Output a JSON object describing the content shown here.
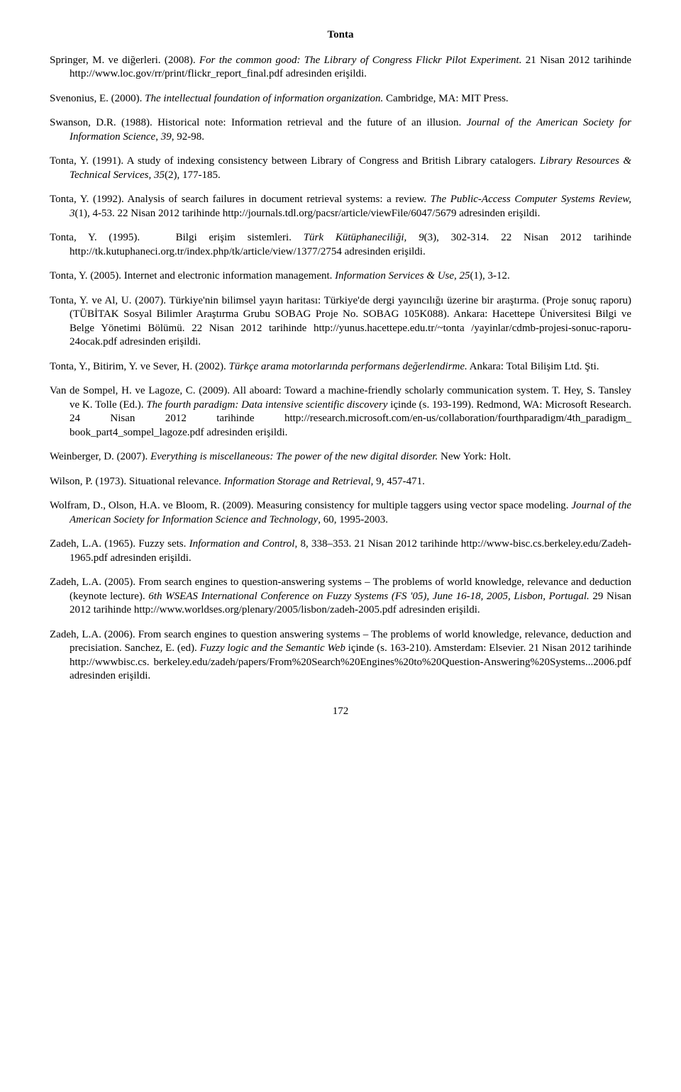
{
  "header": "Tonta",
  "refs": [
    {
      "html": "Springer, M. ve diğerleri. (2008). <span class=\"italic\">For the common good: The Library of Congress Flickr Pilot Experiment.</span> 21 Nisan 2012 tarihinde http://www.loc.gov/rr/print/flickr_report_final.pdf adresinden erişildi."
    },
    {
      "html": "Svenonius, E. (2000). <span class=\"italic\">The intellectual foundation of information organization.</span> Cambridge, MA: MIT Press."
    },
    {
      "html": "Swanson, D.R. (1988). Historical note: Information retrieval and the future of an illusion. <span class=\"italic\">Journal of the American Society for Information Science</span>, <span class=\"italic\">39</span>, 92-98."
    },
    {
      "html": "Tonta, Y. (1991). A study of indexing consistency between Library of Congress and British Library catalogers. <span class=\"italic\">Library Resources &amp; Technical Services, 35</span>(2), 177-185."
    },
    {
      "html": "Tonta, Y. (1992). Analysis of search failures in document retrieval systems: a review. <span class=\"italic\">The Public-Access Computer Systems Review, 3</span>(1), 4-53. 22 Nisan 2012 tarihinde http://journals.tdl.org/pacsr/article/viewFile/6047/5679 adresinden erişildi."
    },
    {
      "html": "Tonta, Y. (1995). &nbsp;&nbsp;Bilgi erişim sistemleri. <span class=\"italic\">Türk Kütüphaneciliği, 9</span>(3), 302-314. 22 Nisan 2012 tarihinde http://tk.kutuphaneci.org.tr/index.php/tk/article/view/1377/2754 adresinden erişildi."
    },
    {
      "html": "Tonta, Y. (2005). Internet and electronic information management. <span class=\"italic\">Information Services &amp; Use</span>, <span class=\"italic\">25</span>(1), 3-12."
    },
    {
      "html": "Tonta, Y. ve Al, U. (2007). Türkiye'nin bilimsel yayın haritası: Türkiye'de dergi yayıncılığı üzerine bir araştırma. (Proje sonuç raporu) (TÜBİTAK Sosyal Bilimler Araştırma Grubu SOBAG Proje No. SOBAG 105K088). Ankara: Hacettepe Üniversitesi Bilgi ve Belge Yönetimi Bölümü. 22 Nisan 2012 tarihinde http://yunus.hacettepe.edu.tr/~tonta /yayinlar/cdmb-projesi-sonuc-raporu-24ocak.pdf adresinden erişildi."
    },
    {
      "html": "Tonta, Y., Bitirim, Y. ve Sever, H. (2002). <span class=\"italic\">Türkçe arama motorlarında performans değerlendirme.</span> Ankara: Total Bilişim Ltd. Şti."
    },
    {
      "html": "Van de Sompel, H. ve Lagoze, C. (2009). All aboard: Toward a machine-friendly scholarly communication system. T. Hey, S. Tansley ve K. Tolle (Ed.). <span class=\"italic\">The fourth paradigm: Data intensive scientific discovery</span> içinde (s. 193-199). Redmond, WA: Microsoft Research. 24 Nisan 2012 tarihinde http://research.microsoft.com/en-us/collaboration/fourthparadigm/4th_paradigm_ book_part4_sompel_lagoze.pdf adresinden erişildi."
    },
    {
      "html": "Weinberger, D. (2007). <span class=\"italic\">Everything is miscellaneous: The power of the new digital disorder.</span> New York: Holt."
    },
    {
      "html": "Wilson, P. (1973). Situational relevance. <span class=\"italic\">Information Storage and Retrieval</span>, 9, 457-471."
    },
    {
      "html": "Wolfram, D., Olson, H.A. ve Bloom, R. (2009). Measuring consistency for multiple taggers using vector space modeling. <span class=\"italic\">Journal of the American Society for Information Science and Technology</span>, 60, 1995-2003."
    },
    {
      "html": "Zadeh, L.A. (1965). Fuzzy sets. <span class=\"italic\">Information and Control</span>, 8, 338–353. 21 Nisan 2012 tarihinde http://www-bisc.cs.berkeley.edu/Zadeh-1965.pdf adresinden erişildi."
    },
    {
      "html": "Zadeh, L.A. (2005). From search engines to question-answering systems – The problems of world knowledge, relevance and deduction (keynote lecture). <span class=\"italic\">6th WSEAS International Conference on Fuzzy Systems (FS '05), June 16-18, 2005, Lisbon, Portugal.</span> 29 Nisan 2012 tarihinde http://www.worldses.org/plenary/2005/lisbon/zadeh-2005.pdf adresinden erişildi."
    },
    {
      "html": "Zadeh, L.A. (2006). From search engines to question answering systems – The problems of world knowledge, relevance, deduction and precisiation. Sanchez, E. (ed). <span class=\"italic\">Fuzzy logic and the Semantic Web</span> içinde (s. 163-210). Amsterdam: Elsevier. 21 Nisan 2012 tarihinde http://wwwbisc.cs. berkeley.edu/zadeh/papers/From%20Search%20Engines%20to%20Question-Answering%20Systems...2006.pdf adresinden erişildi."
    }
  ],
  "page_number": "172"
}
